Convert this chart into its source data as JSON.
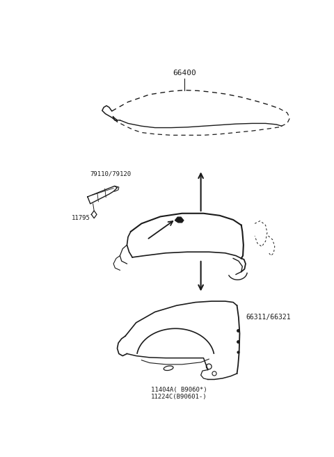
{
  "bg_color": "#ffffff",
  "line_color": "#1a1a1a",
  "text_color": "#1a1a1a",
  "font_size": 7.0,
  "label_66400": "66400",
  "label_hinge": "79110/79120",
  "label_bolt": "11795",
  "label_fender": "66311/66321",
  "label_clips1": "11404A( B9060*)",
  "label_clips2": "11224C(B90601-)"
}
